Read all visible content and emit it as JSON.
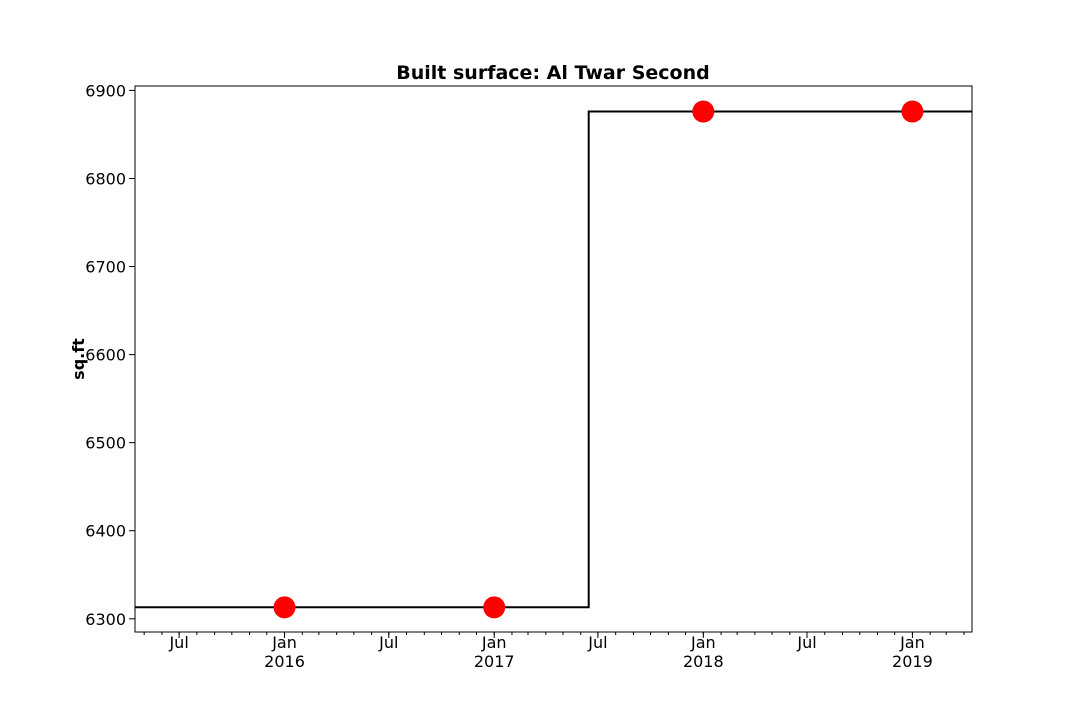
{
  "chart_data": {
    "type": "line",
    "title": "Built surface: Al Twar Second",
    "xlabel": "",
    "ylabel": "sq.ft",
    "xlim": [
      "2015-04-15",
      "2019-04-15"
    ],
    "ylim": [
      6285,
      6905
    ],
    "y_ticks": [
      6300,
      6400,
      6500,
      6600,
      6700,
      6800,
      6900
    ],
    "x_major_ticks": [
      {
        "date": "2015-07-01",
        "label": "Jul",
        "sublabel": ""
      },
      {
        "date": "2016-01-01",
        "label": "Jan",
        "sublabel": "2016"
      },
      {
        "date": "2016-07-01",
        "label": "Jul",
        "sublabel": ""
      },
      {
        "date": "2017-01-01",
        "label": "Jan",
        "sublabel": "2017"
      },
      {
        "date": "2017-07-01",
        "label": "Jul",
        "sublabel": ""
      },
      {
        "date": "2018-01-01",
        "label": "Jan",
        "sublabel": "2018"
      },
      {
        "date": "2018-07-01",
        "label": "Jul",
        "sublabel": ""
      },
      {
        "date": "2019-01-01",
        "label": "Jan",
        "sublabel": "2019"
      }
    ],
    "grid": false,
    "series": [
      {
        "style": "step",
        "color": "#000000",
        "points": [
          {
            "x": "2015-04-15",
            "y": 6313
          },
          {
            "x": "2017-06-15",
            "y": 6313
          },
          {
            "x": "2017-06-15",
            "y": 6876
          },
          {
            "x": "2019-04-15",
            "y": 6876
          }
        ]
      },
      {
        "style": "markers",
        "color": "#ff0000",
        "points": [
          {
            "x": "2016-01-01",
            "y": 6313
          },
          {
            "x": "2017-01-01",
            "y": 6313
          },
          {
            "x": "2018-01-01",
            "y": 6876
          },
          {
            "x": "2019-01-01",
            "y": 6876
          }
        ]
      }
    ]
  }
}
